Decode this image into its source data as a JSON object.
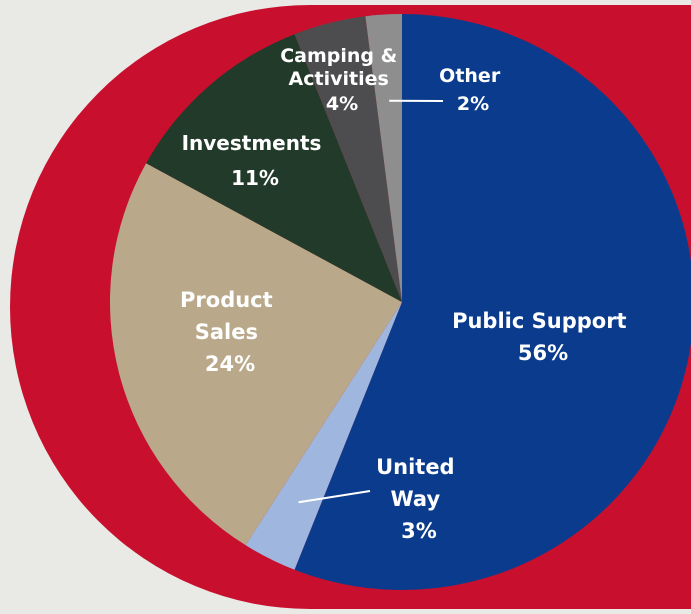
{
  "chart_data": {
    "type": "pie",
    "title": "",
    "slices": [
      {
        "name": "Public Support",
        "value": 56,
        "pct_label": "56%",
        "color": "#0b3b8c"
      },
      {
        "name": "United Way",
        "value": 3,
        "pct_label": "3%",
        "color": "#9fb7de"
      },
      {
        "name": "Product Sales",
        "value": 24,
        "pct_label": "24%",
        "color": "#b9a889"
      },
      {
        "name": "Investments",
        "value": 11,
        "pct_label": "11%",
        "color": "#223a2a"
      },
      {
        "name": "Camping & Activities",
        "value": 4,
        "pct_label": "4%",
        "color": "#4d4d4f"
      },
      {
        "name": "Other",
        "value": 2,
        "pct_label": "2%",
        "color": "#8e8e8e"
      }
    ],
    "labels": {
      "public_support": [
        "Public Support",
        "56%"
      ],
      "united_way": [
        "United",
        "Way",
        "3%"
      ],
      "product_sales": [
        "Product",
        "Sales",
        "24%"
      ],
      "investments": [
        "Investments",
        "11%"
      ],
      "camping": [
        "Camping &",
        "Activities",
        "4%"
      ],
      "other": [
        "Other",
        "2%"
      ]
    },
    "background_color": "#c8102e",
    "page_color": "#e9e9e6"
  }
}
